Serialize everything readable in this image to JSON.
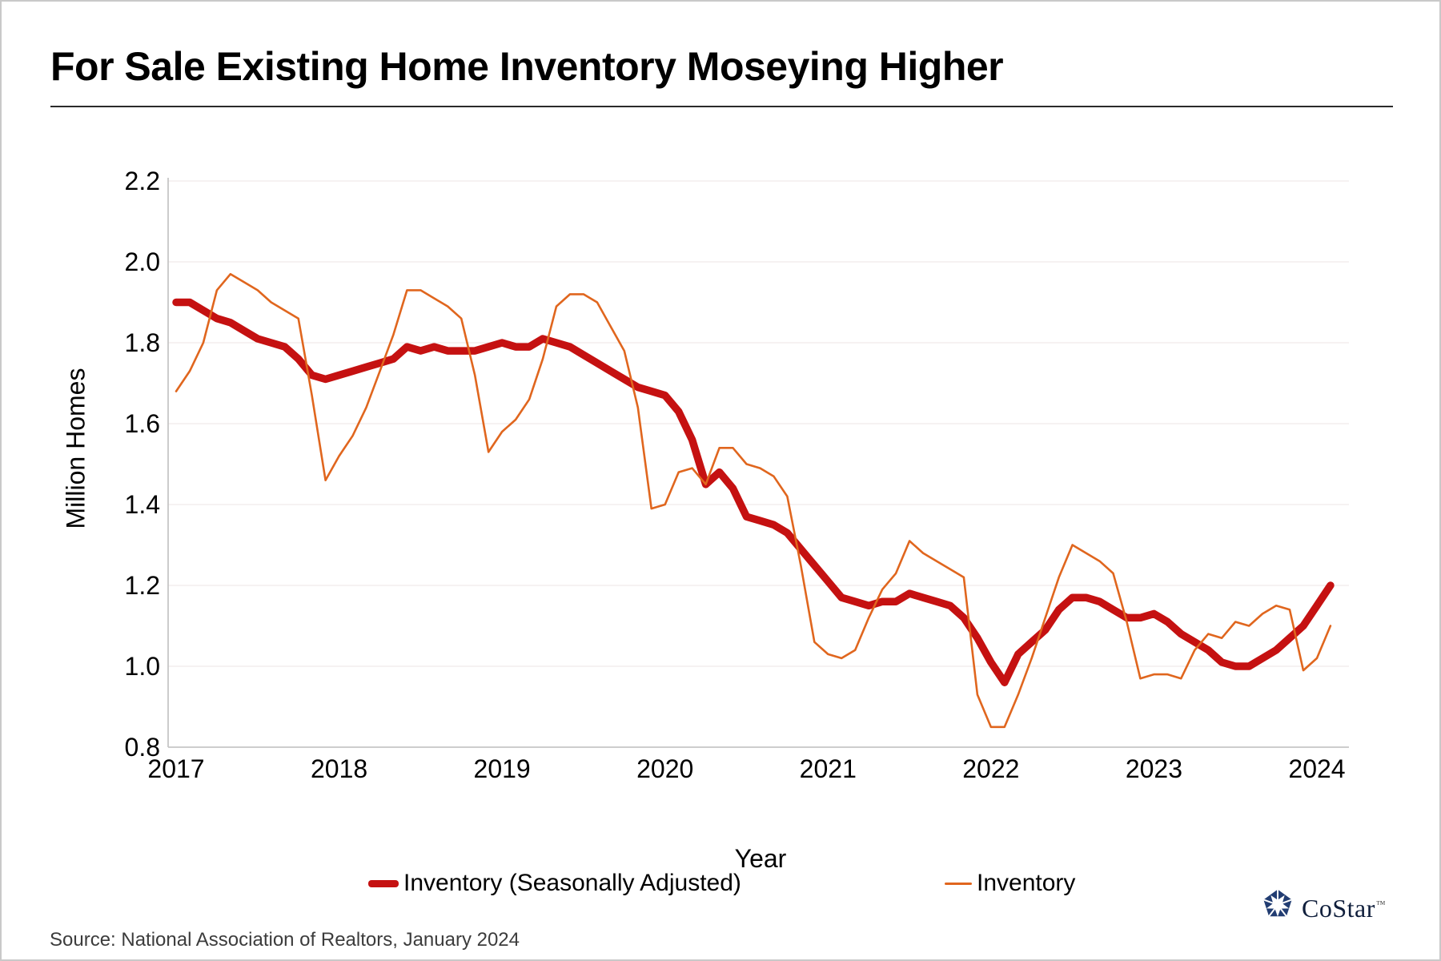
{
  "header": {
    "title": "For Sale Existing Home Inventory Moseying Higher"
  },
  "chart_data": {
    "type": "line",
    "title": "For Sale Existing Home Inventory Moseying Higher",
    "xlabel": "Year",
    "ylabel": "Million Homes",
    "x_unit": "month",
    "start": "2017-01",
    "end": "2024-02",
    "ylim": [
      0.8,
      2.2
    ],
    "grid": "horizontal-light",
    "legend_position": "bottom",
    "yticks": [
      {
        "label": "2.2",
        "value": 2.2
      },
      {
        "label": "2.0",
        "value": 2.0
      },
      {
        "label": "1.8",
        "value": 1.8
      },
      {
        "label": "1.6",
        "value": 1.6
      },
      {
        "label": "1.4",
        "value": 1.4
      },
      {
        "label": "1.2",
        "value": 1.2
      },
      {
        "label": "1.0",
        "value": 1.0
      },
      {
        "label": "0.8",
        "value": 0.8
      }
    ],
    "xticks": [
      {
        "label": "2017",
        "value": 2017
      },
      {
        "label": "2018",
        "value": 2018
      },
      {
        "label": "2019",
        "value": 2019
      },
      {
        "label": "2020",
        "value": 2020
      },
      {
        "label": "2021",
        "value": 2021
      },
      {
        "label": "2022",
        "value": 2022
      },
      {
        "label": "2023",
        "value": 2023
      },
      {
        "label": "2024",
        "value": 2024
      }
    ],
    "series": [
      {
        "name": "Inventory (Seasonally Adjusted)",
        "color": "#C51111",
        "stroke_width": 9.5,
        "values": [
          1.9,
          1.9,
          1.88,
          1.86,
          1.85,
          1.83,
          1.81,
          1.8,
          1.79,
          1.76,
          1.72,
          1.71,
          1.72,
          1.73,
          1.74,
          1.75,
          1.76,
          1.79,
          1.78,
          1.79,
          1.78,
          1.78,
          1.78,
          1.79,
          1.8,
          1.79,
          1.79,
          1.81,
          1.8,
          1.79,
          1.77,
          1.75,
          1.73,
          1.71,
          1.69,
          1.68,
          1.67,
          1.63,
          1.56,
          1.45,
          1.48,
          1.44,
          1.37,
          1.36,
          1.35,
          1.33,
          1.29,
          1.25,
          1.21,
          1.17,
          1.16,
          1.15,
          1.16,
          1.16,
          1.18,
          1.17,
          1.16,
          1.15,
          1.12,
          1.07,
          1.01,
          0.96,
          1.03,
          1.06,
          1.09,
          1.14,
          1.17,
          1.17,
          1.16,
          1.14,
          1.12,
          1.12,
          1.13,
          1.11,
          1.08,
          1.06,
          1.04,
          1.01,
          1.0,
          1.0,
          1.02,
          1.04,
          1.07,
          1.1,
          1.15,
          1.2
        ]
      },
      {
        "name": "Inventory",
        "color": "#E0661E",
        "stroke_width": 2.6,
        "values": [
          1.68,
          1.73,
          1.8,
          1.93,
          1.97,
          1.95,
          1.93,
          1.9,
          1.88,
          1.86,
          1.67,
          1.46,
          1.52,
          1.57,
          1.64,
          1.73,
          1.82,
          1.93,
          1.93,
          1.91,
          1.89,
          1.86,
          1.72,
          1.53,
          1.58,
          1.61,
          1.66,
          1.76,
          1.89,
          1.92,
          1.92,
          1.9,
          1.84,
          1.78,
          1.64,
          1.39,
          1.4,
          1.48,
          1.49,
          1.45,
          1.54,
          1.54,
          1.5,
          1.49,
          1.47,
          1.42,
          1.25,
          1.06,
          1.03,
          1.02,
          1.04,
          1.12,
          1.19,
          1.23,
          1.31,
          1.28,
          1.26,
          1.24,
          1.22,
          0.93,
          0.85,
          0.85,
          0.93,
          1.02,
          1.12,
          1.22,
          1.3,
          1.28,
          1.26,
          1.23,
          1.11,
          0.97,
          0.98,
          0.98,
          0.97,
          1.04,
          1.08,
          1.07,
          1.11,
          1.1,
          1.13,
          1.15,
          1.14,
          0.99,
          1.02,
          1.1
        ]
      }
    ]
  },
  "footer": {
    "source": "Source: National Association of Realtors, January 2024",
    "brand": "CoStar",
    "trademark": "™"
  }
}
